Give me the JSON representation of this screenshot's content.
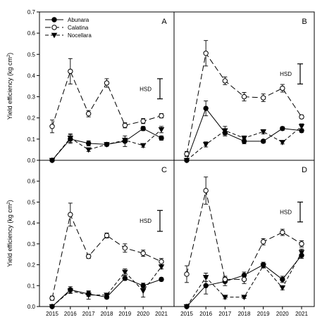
{
  "chart_data": {
    "type": "line",
    "ylabel": "Yield efficiency (kg cm",
    "ylabel_sup": "2",
    "ylabel_close": ")",
    "x": [
      "2015",
      "2016",
      "2017",
      "2018",
      "2019",
      "2020",
      "2021"
    ],
    "ylim": [
      0,
      0.7
    ],
    "yticks": [
      "0.0",
      "0.1",
      "0.2",
      "0.3",
      "0.4",
      "0.5",
      "0.6",
      "0.7"
    ],
    "grid": false,
    "legend_position": "top-left of panel A",
    "legend": [
      "Abunara",
      "Calatina",
      "Nocellara"
    ],
    "hsd_label": "HSD",
    "panels": [
      {
        "label": "A",
        "hsd": {
          "low": 0.29,
          "high": 0.385
        },
        "series": [
          {
            "name": "Abunara",
            "values": [
              0.0,
              0.1,
              0.08,
              0.075,
              0.09,
              0.15,
              0.105
            ],
            "errors": [
              0,
              0.02,
              0.012,
              0.008,
              0.025,
              0.01,
              0.01
            ]
          },
          {
            "name": "Calatina",
            "values": [
              0.16,
              0.42,
              0.22,
              0.365,
              0.165,
              0.185,
              0.21
            ],
            "errors": [
              0.03,
              0.06,
              0.015,
              0.02,
              0.012,
              0.012,
              0.01
            ]
          },
          {
            "name": "Nocellara",
            "values": [
              0.0,
              0.105,
              0.05,
              0.075,
              0.095,
              0.07,
              0.145
            ],
            "errors": [
              0,
              0.02,
              0.008,
              0.008,
              0.01,
              0.008,
              0.015
            ]
          }
        ]
      },
      {
        "label": "B",
        "hsd": {
          "low": 0.36,
          "high": 0.455
        },
        "series": [
          {
            "name": "Abunara",
            "values": [
              0.0,
              0.245,
              0.13,
              0.09,
              0.09,
              0.15,
              0.14
            ],
            "errors": [
              0,
              0.035,
              0.015,
              0.012,
              0.008,
              0.008,
              0.008
            ]
          },
          {
            "name": "Calatina",
            "values": [
              0.03,
              0.505,
              0.375,
              0.3,
              0.295,
              0.34,
              0.205
            ],
            "errors": [
              0.012,
              0.06,
              0.018,
              0.02,
              0.018,
              0.018,
              0.008
            ]
          },
          {
            "name": "Nocellara",
            "values": [
              0.0,
              0.075,
              0.14,
              0.105,
              0.135,
              0.085,
              0.16
            ],
            "errors": [
              0,
              0.012,
              0.02,
              0.01,
              0.01,
              0.008,
              0.012
            ]
          }
        ]
      },
      {
        "label": "C",
        "hsd": {
          "low": 0.36,
          "high": 0.46
        },
        "series": [
          {
            "name": "Abunara",
            "values": [
              0.0,
              0.08,
              0.06,
              0.045,
              0.135,
              0.1,
              0.13
            ],
            "errors": [
              0,
              0.015,
              0.012,
              0.008,
              0.01,
              0.012,
              0.008
            ]
          },
          {
            "name": "Calatina",
            "values": [
              0.04,
              0.44,
              0.24,
              0.34,
              0.28,
              0.255,
              0.215
            ],
            "errors": [
              0.01,
              0.055,
              0.01,
              0.012,
              0.02,
              0.015,
              0.015
            ]
          },
          {
            "name": "Nocellara",
            "values": [
              0.0,
              0.075,
              0.055,
              0.055,
              0.165,
              0.075,
              0.19
            ],
            "errors": [
              0,
              0.012,
              0.02,
              0.008,
              0.015,
              0.03,
              0.01
            ]
          }
        ]
      },
      {
        "label": "D",
        "hsd": {
          "low": 0.405,
          "high": 0.5
        },
        "series": [
          {
            "name": "Abunara",
            "values": [
              0.0,
              0.1,
              0.12,
              0.15,
              0.2,
              0.13,
              0.245
            ],
            "errors": [
              0,
              0.04,
              0.02,
              0.015,
              0.012,
              0.015,
              0.015
            ]
          },
          {
            "name": "Calatina",
            "values": [
              0.155,
              0.555,
              0.13,
              0.13,
              0.31,
              0.355,
              0.3
            ],
            "errors": [
              0.04,
              0.065,
              0.015,
              0.02,
              0.015,
              0.015,
              0.015
            ]
          },
          {
            "name": "Nocellara",
            "values": [
              0.0,
              0.14,
              0.045,
              0.045,
              0.195,
              0.09,
              0.26
            ],
            "errors": [
              0,
              0.02,
              0.008,
              0.006,
              0.01,
              0.01,
              0.015
            ]
          }
        ]
      }
    ]
  }
}
